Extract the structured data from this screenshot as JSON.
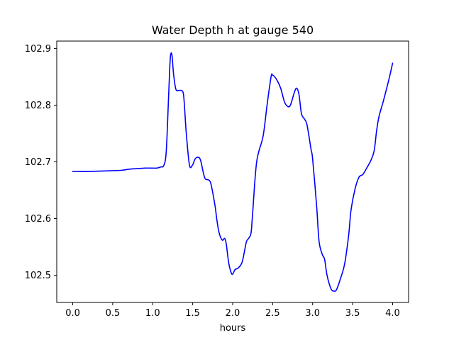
{
  "chart_data": {
    "type": "line",
    "title": "Water Depth h at gauge 540",
    "xlabel": "hours",
    "ylabel": "",
    "xlim": [
      -0.2,
      4.2
    ],
    "ylim": [
      102.452,
      102.913
    ],
    "xticks": [
      0.0,
      0.5,
      1.0,
      1.5,
      2.0,
      2.5,
      3.0,
      3.5,
      4.0
    ],
    "xtick_labels": [
      "0.0",
      "0.5",
      "1.0",
      "1.5",
      "2.0",
      "2.5",
      "3.0",
      "3.5",
      "4.0"
    ],
    "yticks": [
      102.5,
      102.6,
      102.7,
      102.8,
      102.9
    ],
    "ytick_labels": [
      "102.5",
      "102.6",
      "102.7",
      "102.8",
      "102.9"
    ],
    "grid": false,
    "series": [
      {
        "color": "#0000ff",
        "points": [
          [
            0.0,
            102.683
          ],
          [
            0.2,
            102.683
          ],
          [
            0.4,
            102.684
          ],
          [
            0.6,
            102.685
          ],
          [
            0.7,
            102.687
          ],
          [
            0.8,
            102.688
          ],
          [
            0.9,
            102.689
          ],
          [
            1.0,
            102.689
          ],
          [
            1.05,
            102.689
          ],
          [
            1.1,
            102.691
          ],
          [
            1.14,
            102.694
          ],
          [
            1.17,
            102.72
          ],
          [
            1.2,
            102.82
          ],
          [
            1.22,
            102.883
          ],
          [
            1.24,
            102.889
          ],
          [
            1.26,
            102.856
          ],
          [
            1.29,
            102.828
          ],
          [
            1.33,
            102.826
          ],
          [
            1.37,
            102.825
          ],
          [
            1.39,
            102.812
          ],
          [
            1.42,
            102.75
          ],
          [
            1.46,
            102.694
          ],
          [
            1.5,
            102.695
          ],
          [
            1.53,
            102.705
          ],
          [
            1.57,
            102.708
          ],
          [
            1.6,
            102.702
          ],
          [
            1.65,
            102.672
          ],
          [
            1.7,
            102.668
          ],
          [
            1.73,
            102.66
          ],
          [
            1.78,
            102.622
          ],
          [
            1.8,
            102.6
          ],
          [
            1.83,
            102.575
          ],
          [
            1.87,
            102.562
          ],
          [
            1.9,
            102.565
          ],
          [
            1.92,
            102.555
          ],
          [
            1.95,
            102.522
          ],
          [
            1.98,
            102.505
          ],
          [
            2.0,
            102.502
          ],
          [
            2.03,
            102.51
          ],
          [
            2.07,
            102.513
          ],
          [
            2.12,
            102.524
          ],
          [
            2.17,
            102.558
          ],
          [
            2.2,
            102.565
          ],
          [
            2.23,
            102.575
          ],
          [
            2.25,
            102.61
          ],
          [
            2.3,
            102.7
          ],
          [
            2.38,
            102.745
          ],
          [
            2.43,
            102.8
          ],
          [
            2.48,
            102.85
          ],
          [
            2.5,
            102.853
          ],
          [
            2.55,
            102.845
          ],
          [
            2.6,
            102.83
          ],
          [
            2.65,
            102.805
          ],
          [
            2.7,
            102.797
          ],
          [
            2.73,
            102.803
          ],
          [
            2.77,
            102.822
          ],
          [
            2.8,
            102.83
          ],
          [
            2.83,
            102.818
          ],
          [
            2.86,
            102.785
          ],
          [
            2.9,
            102.775
          ],
          [
            2.93,
            102.765
          ],
          [
            2.98,
            102.722
          ],
          [
            3.0,
            102.705
          ],
          [
            3.05,
            102.622
          ],
          [
            3.08,
            102.56
          ],
          [
            3.12,
            102.537
          ],
          [
            3.15,
            102.528
          ],
          [
            3.18,
            102.5
          ],
          [
            3.23,
            102.476
          ],
          [
            3.27,
            102.472
          ],
          [
            3.3,
            102.475
          ],
          [
            3.35,
            102.495
          ],
          [
            3.4,
            102.52
          ],
          [
            3.45,
            102.57
          ],
          [
            3.48,
            102.615
          ],
          [
            3.53,
            102.652
          ],
          [
            3.58,
            102.673
          ],
          [
            3.63,
            102.678
          ],
          [
            3.68,
            102.69
          ],
          [
            3.73,
            102.703
          ],
          [
            3.77,
            102.72
          ],
          [
            3.8,
            102.755
          ],
          [
            3.83,
            102.78
          ],
          [
            3.88,
            102.805
          ],
          [
            3.93,
            102.832
          ],
          [
            3.97,
            102.855
          ],
          [
            4.0,
            102.874
          ]
        ]
      }
    ]
  }
}
